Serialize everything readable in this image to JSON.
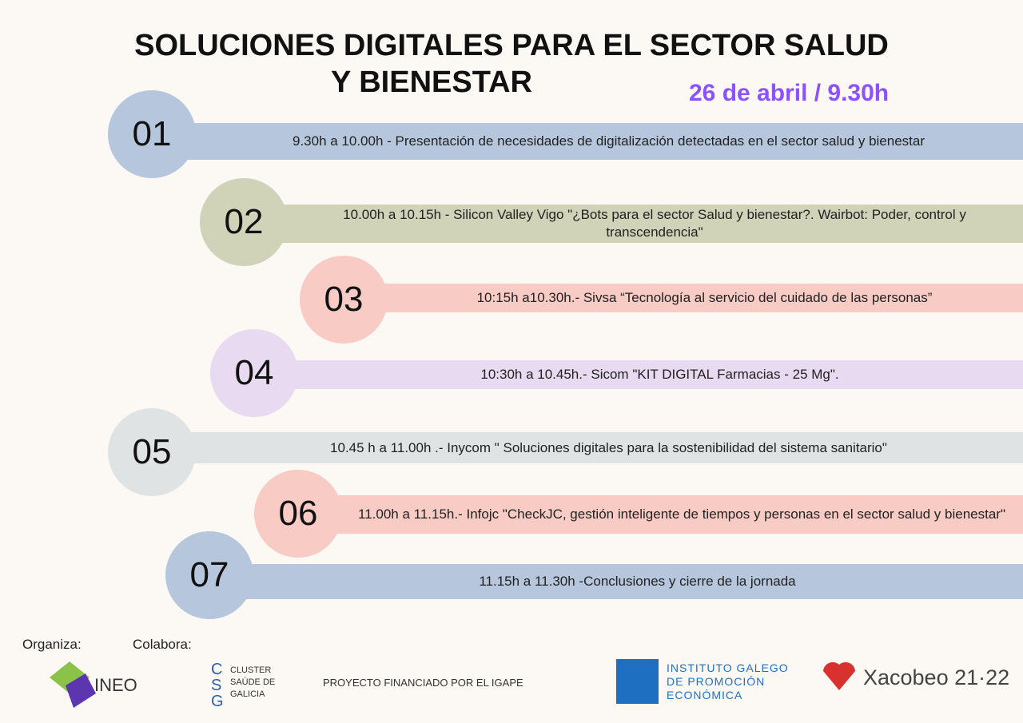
{
  "header": {
    "title_line1": "SOLUCIONES  DIGITALES PARA EL SECTOR SALUD",
    "title_line2": "Y BIENESTAR",
    "date": "26 de abril / 9.30h"
  },
  "agenda": [
    {
      "number": "01",
      "text": "9.30h a 10.00h - Presentación de necesidades de digitalización  detectadas en el sector salud  y bienestar"
    },
    {
      "number": "02",
      "text": "10.00h a 10.15h - Silicon Valley Vigo \"¿Bots para el sector Salud y bienestar?. Wairbot: Poder, control y transcendencia\""
    },
    {
      "number": "03",
      "text": "10:15h a10.30h.- Sivsa  “Tecnología al servicio del cuidado de las personas”"
    },
    {
      "number": "04",
      "text": "10:30h a 10.45h.- Sicom  \"KIT DIGITAL  Farmacias - 25 Mg\"."
    },
    {
      "number": "05",
      "text": "10.45 h a 11.00h .- Inycom \" Soluciones digitales para la sostenibilidad del sistema sanitario\""
    },
    {
      "number": "06",
      "text": "11.00h a 11.15h.- Infojc \"CheckJC, gestión inteligente de tiempos y personas en el sector salud y bienestar\""
    },
    {
      "number": "07",
      "text": "11.15h a 11.30h -Conclusiones y cierre de la jornada"
    }
  ],
  "footer": {
    "organiza": "Organiza:",
    "colabora": "Colabora:",
    "ineo": "INEO",
    "cluster": "CLUSTER SAÚDE DE GALICIA",
    "igape_note": "PROYECTO FINANCIADO POR EL IGAPE",
    "igape": "INSTITUTO GALEGO DE PROMOCIÓN ECONÓMICA",
    "xacobeo": "Xacobeo 21·22"
  }
}
